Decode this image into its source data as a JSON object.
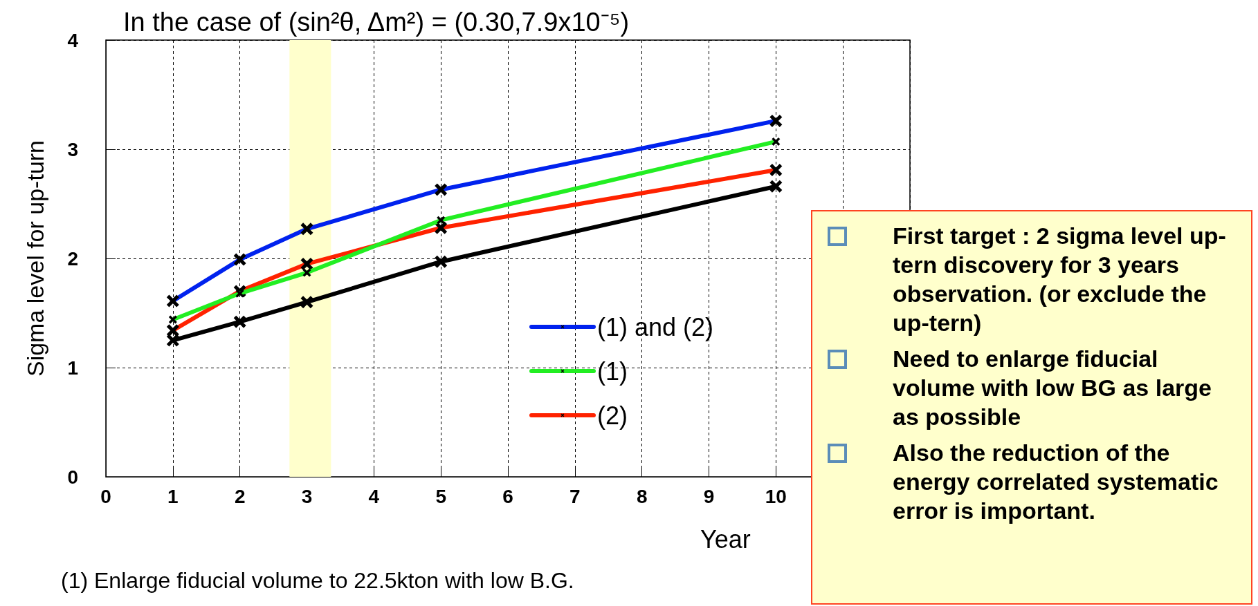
{
  "chart_data": {
    "type": "line",
    "title": "In the case of (sin²θ, Δm²) = (0.30,7.9x10⁻⁵)",
    "xlabel": "Year",
    "ylabel": "Sigma level for up-turn",
    "xlim": [
      0,
      12
    ],
    "xticks": [
      0,
      1,
      2,
      3,
      4,
      5,
      6,
      7,
      8,
      9,
      10,
      {
        "value": 11,
        "label": null
      },
      {
        "value": 12,
        "label": null
      }
    ],
    "ylim": [
      0,
      4
    ],
    "yticks": [
      0,
      1,
      2,
      3,
      4
    ],
    "x": [
      1,
      2,
      3,
      5,
      10
    ],
    "series": [
      {
        "name": "(1) and (2)",
        "color": "#0022ee",
        "values": [
          1.61,
          1.99,
          2.27,
          2.63,
          3.26
        ]
      },
      {
        "name": "(1)",
        "color": "#22ee22",
        "values": [
          1.44,
          1.68,
          1.87,
          2.35,
          3.07
        ]
      },
      {
        "name": "(2)",
        "color": "#ff2200",
        "values": [
          1.34,
          1.7,
          1.95,
          2.28,
          2.81
        ]
      },
      {
        "color": "#000000",
        "values": [
          1.25,
          1.42,
          1.6,
          1.97,
          2.66
        ]
      }
    ],
    "bands": [
      {
        "axis": "x",
        "from": 2.74,
        "to": 3.36,
        "color": "#ffffcc"
      }
    ],
    "grid": true,
    "legend": "right",
    "marker": "cross",
    "line_style": "solid",
    "annotations": [
      "First target : 2 sigma level up-tern discovery for 3 years observation. (or exclude the up-tern)",
      "Need to enlarge fiducial volume with low BG as large as possible",
      "Also the reduction of the energy correlated systematic error is important.",
      "(1)  Enlarge fiducial volume to 22.5kton with low B.G."
    ]
  }
}
